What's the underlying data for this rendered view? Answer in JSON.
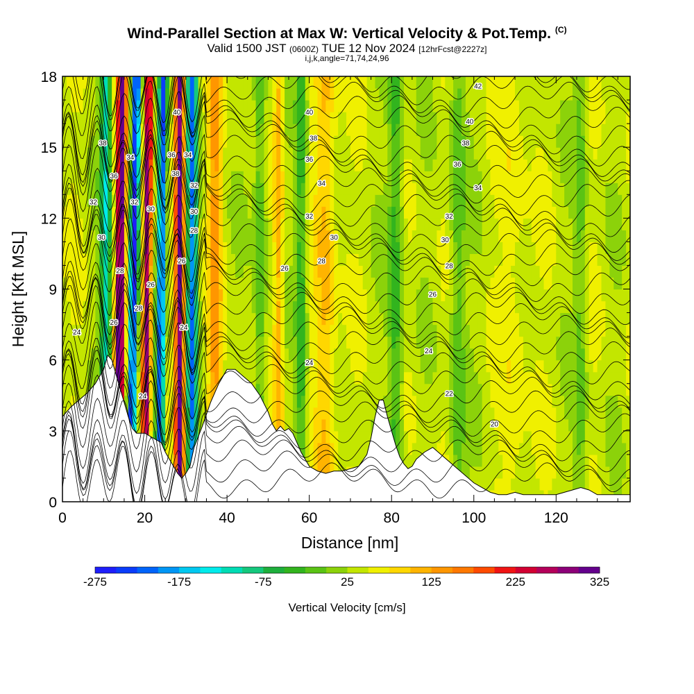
{
  "title": {
    "main": "Wind-Parallel Section at Max W: Vertical Velocity & Pot.Temp.",
    "main_tag": "(C)",
    "sub_valid": "Valid 1500 JST",
    "sub_z": "(0600Z)",
    "sub_date": "TUE 12 Nov 2024",
    "sub_fcst": "[12hrFcst@2227z]",
    "sub_line3": "i,j,k,angle=71,74,24,96"
  },
  "chart_data": {
    "type": "heatmap",
    "xlabel": "Distance [nm]",
    "ylabel": "Height [Kft MSL]",
    "xlim": [
      0,
      138
    ],
    "ylim": [
      0,
      18
    ],
    "x_ticks": [
      0,
      20,
      40,
      60,
      80,
      100,
      120
    ],
    "y_ticks": [
      0,
      3,
      6,
      9,
      12,
      15,
      18
    ],
    "colorbar": {
      "label": "Vertical Velocity [cm/s]",
      "range": [
        -275,
        325
      ],
      "step": 25,
      "tick_values": [
        -275,
        -175,
        -75,
        25,
        125,
        225,
        325
      ],
      "colors": [
        "#1e1efa",
        "#0a3cfa",
        "#0064fa",
        "#0096f5",
        "#00c8f0",
        "#00ebeb",
        "#00dcb4",
        "#14c87d",
        "#1eaf3c",
        "#32b41e",
        "#5ac314",
        "#8cd20a",
        "#c3e600",
        "#f0f000",
        "#ffd700",
        "#ffb400",
        "#ff9600",
        "#ff7800",
        "#ff4b00",
        "#f01414",
        "#d20032",
        "#b4005a",
        "#8c0078",
        "#64008c"
      ]
    },
    "theta_contour_labels": [
      "20",
      "22",
      "24",
      "26",
      "28",
      "30",
      "32",
      "34",
      "36",
      "38",
      "40",
      "42"
    ],
    "theta_label_positions": [
      {
        "label": "24",
        "x": 3.5,
        "y": 7.2
      },
      {
        "label": "24",
        "x": 19.5,
        "y": 4.5
      },
      {
        "label": "26",
        "x": 12.5,
        "y": 7.6
      },
      {
        "label": "28",
        "x": 18.5,
        "y": 8.2
      },
      {
        "label": "28",
        "x": 14,
        "y": 9.8
      },
      {
        "label": "30",
        "x": 9.5,
        "y": 11.2
      },
      {
        "label": "32",
        "x": 7.5,
        "y": 12.7
      },
      {
        "label": "36",
        "x": 12.5,
        "y": 13.8
      },
      {
        "label": "38",
        "x": 9.8,
        "y": 15.2
      },
      {
        "label": "34",
        "x": 16.5,
        "y": 14.6
      },
      {
        "label": "32",
        "x": 17.5,
        "y": 12.7
      },
      {
        "label": "30",
        "x": 21.5,
        "y": 12.4
      },
      {
        "label": "26",
        "x": 21.5,
        "y": 9.2
      },
      {
        "label": "36",
        "x": 26.5,
        "y": 14.7
      },
      {
        "label": "34",
        "x": 30.5,
        "y": 14.7
      },
      {
        "label": "38",
        "x": 27.5,
        "y": 13.9
      },
      {
        "label": "40",
        "x": 27.8,
        "y": 16.5
      },
      {
        "label": "32",
        "x": 32,
        "y": 13.4
      },
      {
        "label": "30",
        "x": 32,
        "y": 12.3
      },
      {
        "label": "28",
        "x": 32,
        "y": 11.5
      },
      {
        "label": "26",
        "x": 29,
        "y": 10.2
      },
      {
        "label": "24",
        "x": 29.5,
        "y": 7.4
      },
      {
        "label": "26",
        "x": 54,
        "y": 9.9
      },
      {
        "label": "24",
        "x": 60,
        "y": 5.9
      },
      {
        "label": "40",
        "x": 60,
        "y": 16.5
      },
      {
        "label": "38",
        "x": 61,
        "y": 15.4
      },
      {
        "label": "36",
        "x": 60,
        "y": 14.5
      },
      {
        "label": "34",
        "x": 63,
        "y": 13.5
      },
      {
        "label": "32",
        "x": 60,
        "y": 12.1
      },
      {
        "label": "30",
        "x": 66,
        "y": 11.2
      },
      {
        "label": "28",
        "x": 63,
        "y": 10.2
      },
      {
        "label": "42",
        "x": 101,
        "y": 17.6
      },
      {
        "label": "40",
        "x": 99,
        "y": 16.1
      },
      {
        "label": "38",
        "x": 98,
        "y": 15.2
      },
      {
        "label": "36",
        "x": 96,
        "y": 14.3
      },
      {
        "label": "34",
        "x": 101,
        "y": 13.3
      },
      {
        "label": "32",
        "x": 94,
        "y": 12.1
      },
      {
        "label": "30",
        "x": 93,
        "y": 11.1
      },
      {
        "label": "28",
        "x": 94,
        "y": 10
      },
      {
        "label": "26",
        "x": 90,
        "y": 8.8
      },
      {
        "label": "24",
        "x": 89,
        "y": 6.4
      },
      {
        "label": "22",
        "x": 94,
        "y": 4.6
      },
      {
        "label": "20",
        "x": 105,
        "y": 3.3
      }
    ],
    "terrain_top_kft": [
      [
        0,
        3.6
      ],
      [
        2,
        4.0
      ],
      [
        4,
        4.3
      ],
      [
        6,
        4.6
      ],
      [
        8,
        5.0
      ],
      [
        10,
        5.6
      ],
      [
        11,
        6.2
      ],
      [
        12,
        6.0
      ],
      [
        13,
        5.4
      ],
      [
        14,
        4.8
      ],
      [
        15,
        4.2
      ],
      [
        16,
        3.6
      ],
      [
        17,
        3.1
      ],
      [
        18,
        2.9
      ],
      [
        20,
        2.9
      ],
      [
        22,
        2.7
      ],
      [
        24,
        2.5
      ],
      [
        25,
        2.1
      ],
      [
        26,
        1.8
      ],
      [
        27,
        1.5
      ],
      [
        28,
        1.2
      ],
      [
        29,
        1.0
      ],
      [
        30,
        1.2
      ],
      [
        31,
        1.5
      ],
      [
        32,
        2.3
      ],
      [
        34,
        3.2
      ],
      [
        36,
        4.2
      ],
      [
        38,
        5.0
      ],
      [
        40,
        5.6
      ],
      [
        42,
        5.6
      ],
      [
        44,
        5.3
      ],
      [
        46,
        5.0
      ],
      [
        48,
        4.5
      ],
      [
        50,
        3.8
      ],
      [
        51,
        3.3
      ],
      [
        52,
        3.0
      ],
      [
        53,
        3.2
      ],
      [
        54,
        3.0
      ],
      [
        55,
        3.1
      ],
      [
        56,
        2.9
      ],
      [
        57,
        2.5
      ],
      [
        58,
        2.1
      ],
      [
        59,
        1.8
      ],
      [
        60,
        1.5
      ],
      [
        62,
        1.3
      ],
      [
        64,
        1.2
      ],
      [
        66,
        1.3
      ],
      [
        68,
        1.3
      ],
      [
        70,
        1.4
      ],
      [
        72,
        1.5
      ],
      [
        74,
        2.0
      ],
      [
        75,
        2.7
      ],
      [
        76,
        3.6
      ],
      [
        77,
        4.3
      ],
      [
        78,
        4.3
      ],
      [
        79,
        3.6
      ],
      [
        80,
        3.0
      ],
      [
        81,
        2.4
      ],
      [
        82,
        1.9
      ],
      [
        83,
        1.6
      ],
      [
        84,
        1.4
      ],
      [
        85,
        1.5
      ],
      [
        86,
        1.8
      ],
      [
        88,
        2.1
      ],
      [
        90,
        2.3
      ],
      [
        92,
        2.0
      ],
      [
        94,
        1.7
      ],
      [
        96,
        1.4
      ],
      [
        98,
        1.1
      ],
      [
        100,
        0.8
      ],
      [
        102,
        0.6
      ],
      [
        104,
        0.4
      ],
      [
        106,
        0.3
      ],
      [
        108,
        0.3
      ],
      [
        110,
        0.4
      ],
      [
        112,
        0.3
      ],
      [
        114,
        0.3
      ],
      [
        116,
        0.3
      ],
      [
        118,
        0.3
      ],
      [
        120,
        0.3
      ],
      [
        122,
        0.4
      ],
      [
        124,
        0.5
      ],
      [
        126,
        0.6
      ],
      [
        128,
        0.5
      ],
      [
        130,
        0.3
      ],
      [
        133,
        0.3
      ],
      [
        138,
        0.3
      ]
    ]
  }
}
